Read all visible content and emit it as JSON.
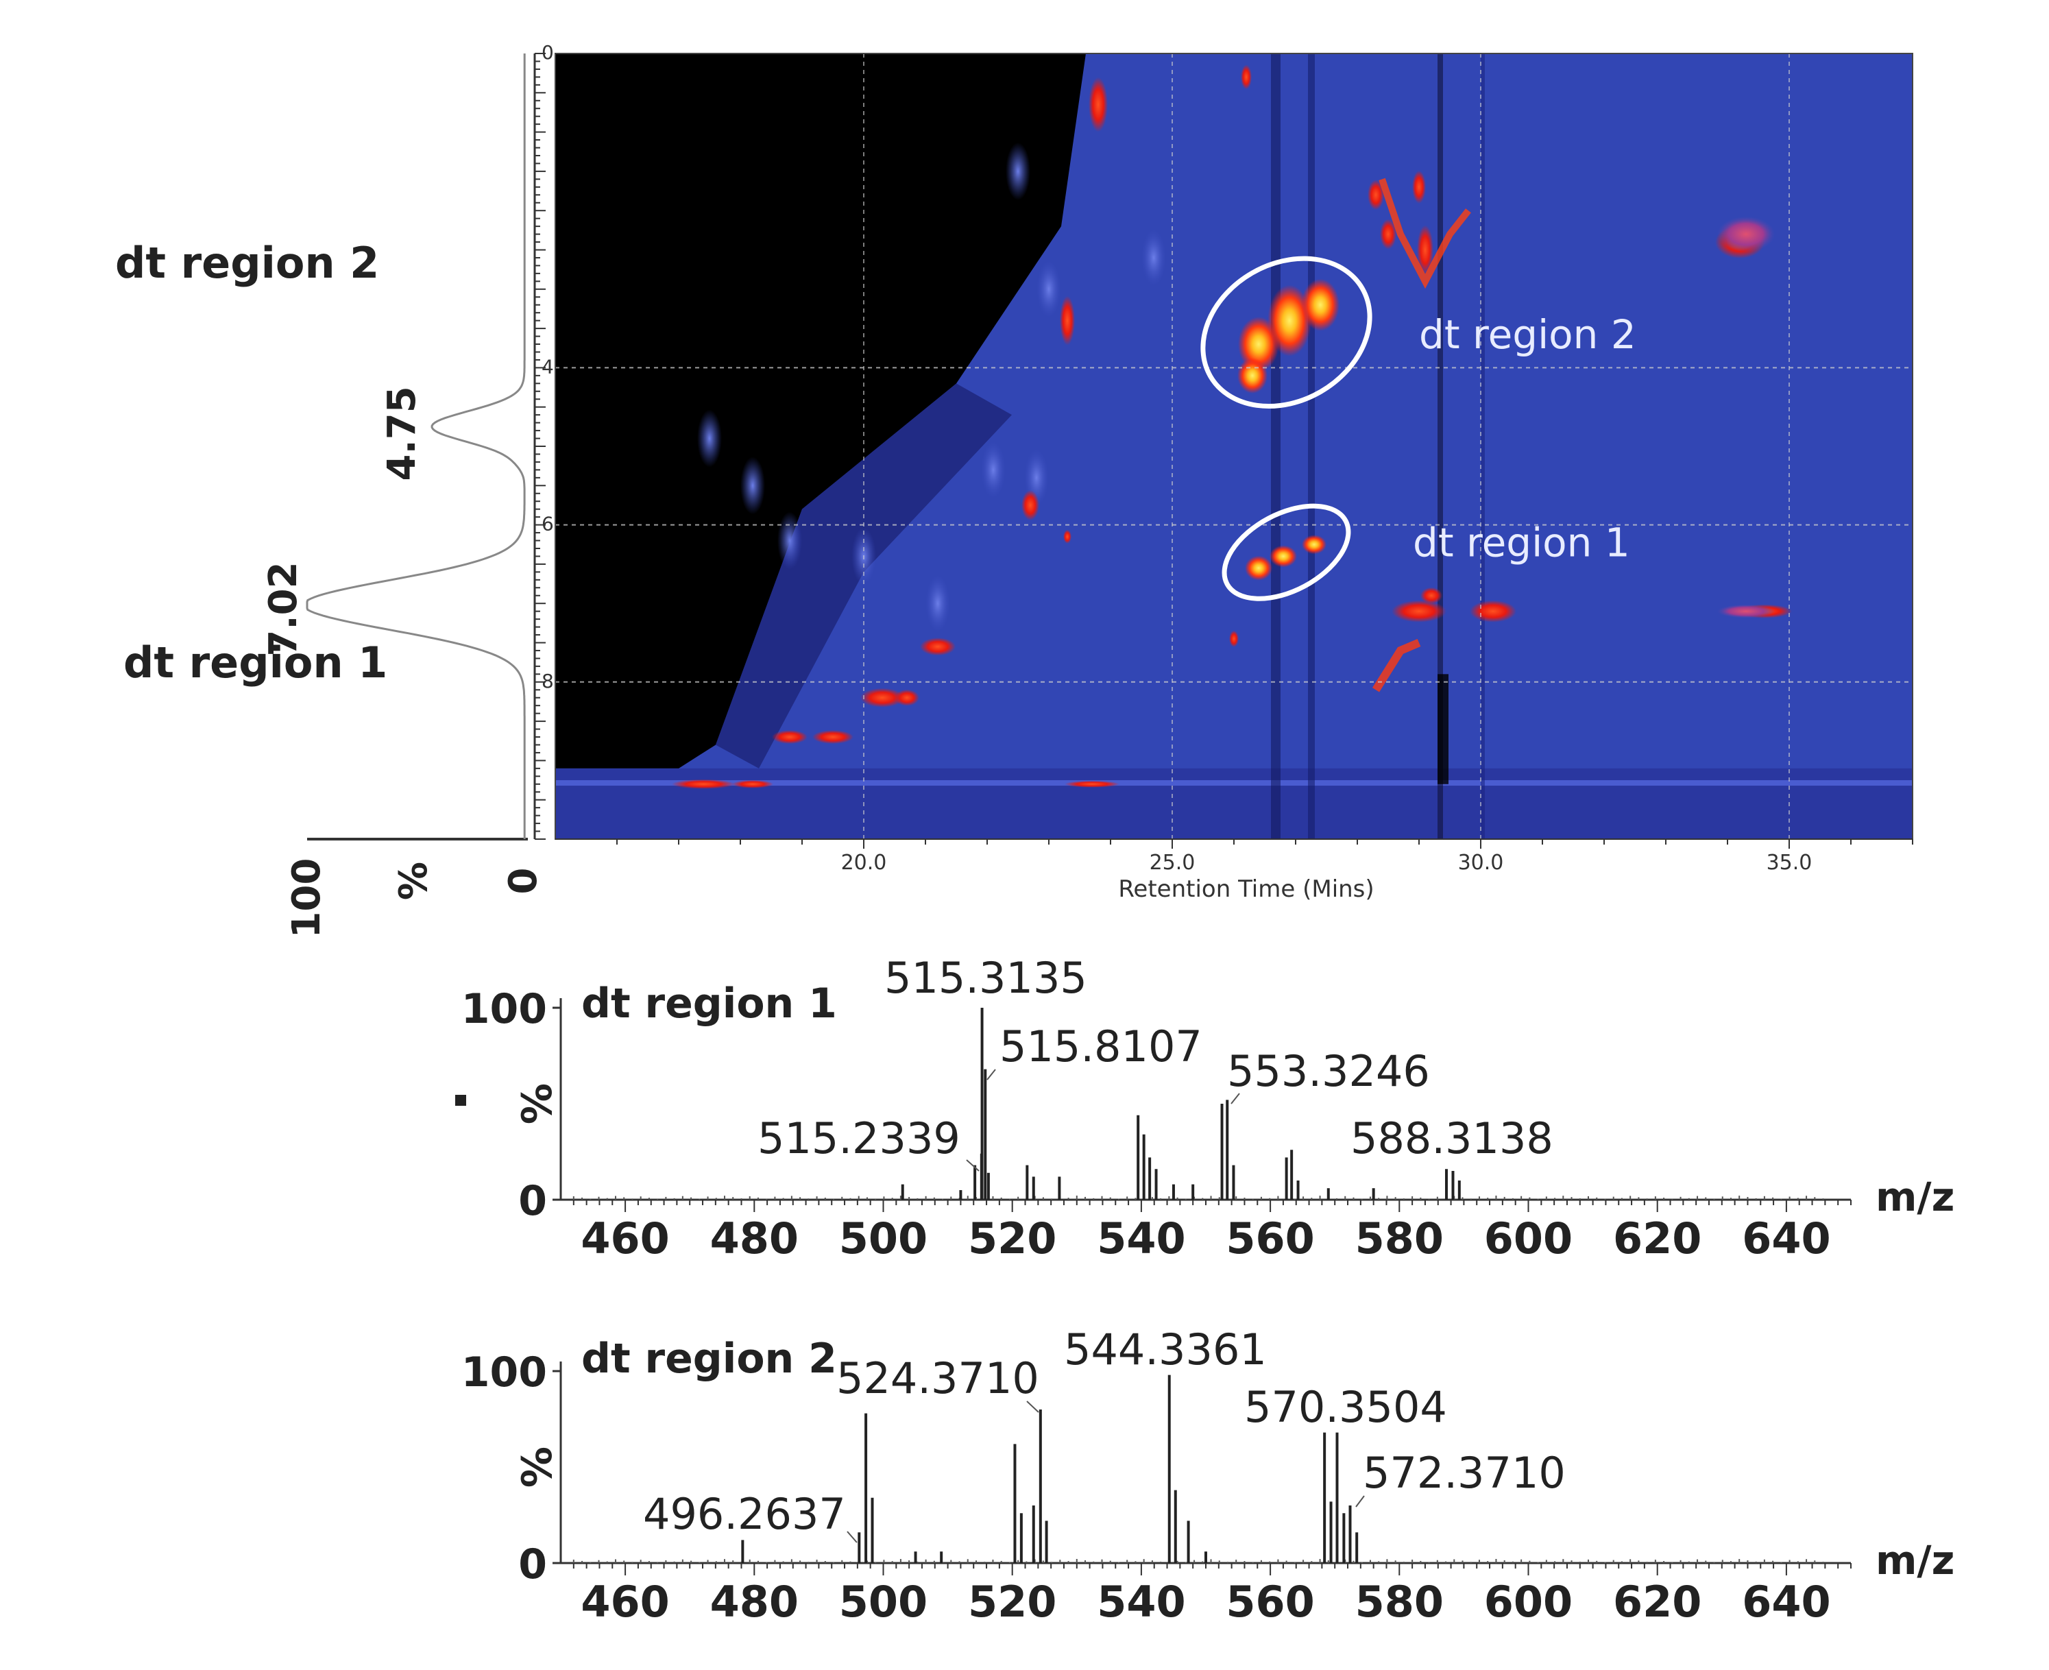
{
  "chart_data": [
    {
      "type": "heatmap",
      "xlabel": "Retention Time (Mins)",
      "x_ticks": [
        "20.0",
        "25.0",
        "30.0",
        "35.0"
      ],
      "x_tick_values": [
        20.0,
        25.0,
        30.0,
        35.0
      ],
      "xlim": [
        15.0,
        37.0
      ],
      "y_ticks": [
        "0",
        "4",
        "6",
        "8"
      ],
      "y_tick_values": [
        0,
        4,
        6,
        8
      ],
      "ylim": [
        0,
        10
      ],
      "y_inverted_display": true,
      "grid": true,
      "colormap": [
        "#000000",
        "#1e1e9e",
        "#3548c0",
        "#e81a10",
        "#ffe020"
      ],
      "background": "#3246b4",
      "regions": [
        {
          "label": "dt region 2",
          "rt_range": [
            26.0,
            28.5
          ],
          "dt_center": 7.02
        },
        {
          "label": "dt region 1",
          "rt_range": [
            26.3,
            28.0
          ],
          "dt_center": 4.75
        }
      ],
      "side_profile": {
        "axis_ticks": [
          "100",
          "%",
          "0"
        ],
        "peaks": [
          {
            "dt": 7.02,
            "label": "7.02",
            "region": "dt region 2",
            "intensity": 100
          },
          {
            "dt": 4.75,
            "label": "4.75",
            "region": "dt region 1",
            "intensity": 42
          }
        ]
      }
    },
    {
      "type": "bar",
      "title": "dt region 1",
      "xlabel": "m/z",
      "ylabel": "%",
      "xlim": [
        450,
        650
      ],
      "ylim": [
        0,
        100
      ],
      "x_ticks": [
        460,
        480,
        500,
        520,
        540,
        560,
        580,
        600,
        620,
        640
      ],
      "y_ticks": [
        "100",
        "0"
      ],
      "x": [
        503,
        512,
        514.2,
        515.23,
        515.31,
        515.81,
        516.3,
        522.3,
        523.3,
        527.3,
        539.5,
        540.4,
        541.3,
        542.3,
        545,
        548,
        552.5,
        553.32,
        554.3,
        562.5,
        563.3,
        564.3,
        569,
        576,
        587.3,
        588.31,
        589.3
      ],
      "values": [
        8,
        5,
        18,
        24,
        100,
        68,
        14,
        18,
        12,
        12,
        44,
        34,
        22,
        16,
        8,
        8,
        50,
        52,
        18,
        22,
        26,
        10,
        6,
        6,
        16,
        15,
        10
      ],
      "annotations": [
        {
          "label": "515.3135",
          "x": 515.3135
        },
        {
          "label": "515.8107",
          "x": 515.8107
        },
        {
          "label": "553.3246",
          "x": 553.3246
        },
        {
          "label": "515.2339",
          "x": 515.2339
        },
        {
          "label": "588.3138",
          "x": 588.3138
        }
      ]
    },
    {
      "type": "bar",
      "title": "dt region 2",
      "xlabel": "m/z",
      "ylabel": "%",
      "xlim": [
        450,
        650
      ],
      "ylim": [
        0,
        100
      ],
      "x_ticks": [
        460,
        480,
        500,
        520,
        540,
        560,
        580,
        600,
        620,
        640
      ],
      "y_ticks": [
        "100",
        "0"
      ],
      "x": [
        478.2,
        496.26,
        497.3,
        498.3,
        505,
        509,
        520.4,
        521.4,
        523.3,
        524.37,
        525.3,
        544.34,
        545.3,
        547.3,
        550,
        568.4,
        569.4,
        570.35,
        571.4,
        572.37,
        573.4
      ],
      "values": [
        12,
        16,
        78,
        34,
        6,
        6,
        62,
        26,
        30,
        80,
        22,
        98,
        38,
        22,
        6,
        68,
        32,
        68,
        26,
        30,
        16
      ],
      "annotations": [
        {
          "label": "524.3710",
          "x": 524.371
        },
        {
          "label": "544.3361",
          "x": 544.3361
        },
        {
          "label": "570.3504",
          "x": 570.3504
        },
        {
          "label": "572.3710",
          "x": 572.371
        },
        {
          "label": "496.2637",
          "x": 496.2637
        }
      ]
    }
  ],
  "labels": {
    "region1_text": "dt region 1",
    "region2_text": "dt region 2"
  }
}
